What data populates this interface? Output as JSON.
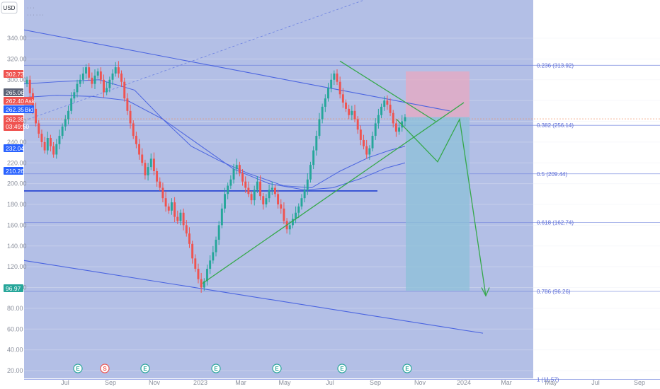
{
  "currency_button": "USD",
  "legend_lines": [
    "· · ·",
    "· · · · · ·"
  ],
  "chart_data": {
    "type": "candlestick",
    "title": "",
    "colors": {
      "up": "#26a69a",
      "down": "#ef5350",
      "drawing_bg": "#b3bfe6",
      "trendline": "#4a64e0",
      "pattern": "#35a84a",
      "fib": "#6f83dd",
      "stop_zone": "#e8a8c0",
      "target_zone": "#8cc0d8"
    },
    "y_axis": {
      "ticks": [
        "340.00",
        "320.00",
        "300.00",
        "280.00",
        "260.00",
        "240.00",
        "220.00",
        "200.00",
        "180.00",
        "160.00",
        "140.00",
        "120.00",
        "100.00",
        "80.00",
        "60.00",
        "40.00",
        "20.00"
      ]
    },
    "x_axis": {
      "ticks": [
        "Jul",
        "Sep",
        "Nov",
        "2023",
        "Mar",
        "May",
        "Jul",
        "Sep",
        "Nov",
        "2024",
        "Mar",
        "May",
        "Jul",
        "Sep"
      ]
    },
    "price_tags": [
      {
        "label": "302.73",
        "color": "#ef5350"
      },
      {
        "label": "265.06",
        "color": "#5b6275"
      },
      {
        "label": "262.40",
        "suffix": "Ask",
        "color": "#ef5350"
      },
      {
        "label": "262.35",
        "suffix": "Bid",
        "color": "#2962ff"
      },
      {
        "label": "262.35",
        "sub": "03:49:50",
        "color": "#ef5350"
      },
      {
        "label": "232.04",
        "color": "#2962ff"
      },
      {
        "label": "210.26",
        "color": "#2962ff"
      },
      {
        "label": "96.97",
        "color": "#26a69a"
      }
    ],
    "fib_levels": [
      {
        "label": "0.236 (313.92)",
        "value": 313.92
      },
      {
        "label": "0.382 (256.14)",
        "value": 256.14
      },
      {
        "label": "0.5 (209.44)",
        "value": 209.44
      },
      {
        "label": "0.618 (162.74)",
        "value": 162.74
      },
      {
        "label": "0.786 (96.26)",
        "value": 96.26
      },
      {
        "label": "1 (11.57)",
        "value": 11.57
      }
    ],
    "events": [
      {
        "x": "Jul 2022",
        "glyph": "E"
      },
      {
        "x": "Aug 2022",
        "glyph": "S"
      },
      {
        "x": "Oct 2022",
        "glyph": "E"
      },
      {
        "x": "Jan 2023",
        "glyph": "E"
      },
      {
        "x": "Apr 2023",
        "glyph": "E"
      },
      {
        "x": "Jul 2023",
        "glyph": "E"
      },
      {
        "x": "Oct 2023",
        "glyph": "E"
      }
    ],
    "series": {
      "dates_start": "Jun 2022",
      "close": [
        300,
        287,
        272,
        258,
        248,
        240,
        232,
        244,
        236,
        228,
        238,
        246,
        255,
        262,
        270,
        282,
        288,
        296,
        300,
        306,
        312,
        302,
        296,
        304,
        308,
        300,
        288,
        292,
        300,
        306,
        312,
        306,
        298,
        282,
        270,
        258,
        246,
        238,
        228,
        220,
        208,
        216,
        224,
        212,
        202,
        196,
        186,
        178,
        174,
        182,
        168,
        164,
        172,
        160,
        152,
        142,
        128,
        118,
        108,
        100,
        106,
        118,
        126,
        134,
        146,
        160,
        176,
        190,
        198,
        204,
        214,
        218,
        210,
        202,
        196,
        190,
        184,
        194,
        202,
        188,
        180,
        186,
        194,
        196,
        190,
        180,
        176,
        164,
        156,
        160,
        166,
        172,
        178,
        186,
        194,
        204,
        218,
        232,
        246,
        262,
        274,
        282,
        292,
        300,
        306,
        298,
        286,
        278,
        272,
        266,
        270,
        262,
        252,
        242,
        236,
        228,
        234,
        246,
        258,
        266,
        274,
        280,
        276,
        268,
        258,
        250,
        254,
        260,
        264
      ]
    }
  }
}
